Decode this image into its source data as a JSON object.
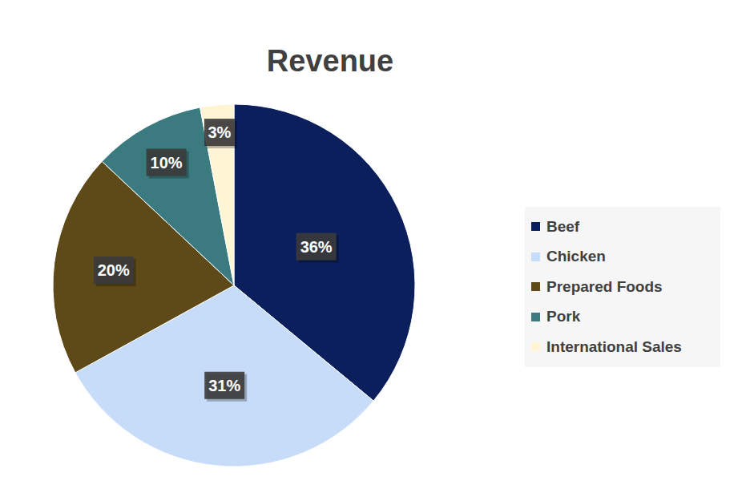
{
  "chart_data": {
    "type": "pie",
    "title": "Revenue",
    "categories": [
      "Beef",
      "Chicken",
      "Prepared Foods",
      "Pork",
      "International Sales"
    ],
    "values": [
      36,
      31,
      20,
      10,
      3
    ],
    "value_labels": [
      "36%",
      "31%",
      "20%",
      "10%",
      "3%"
    ],
    "colors": [
      "#0b1f5c",
      "#c6dcf8",
      "#5e4a19",
      "#3b7b80",
      "#fff4d4"
    ],
    "data_labels": true,
    "legend": "right"
  }
}
